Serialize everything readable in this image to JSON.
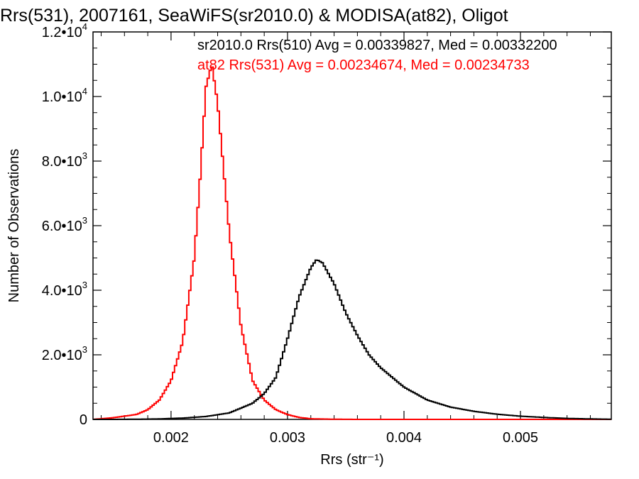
{
  "chart_data": {
    "type": "line",
    "title": "Rrs(531), 2007161, SeaWiFS(sr2010.0) & MODISA(at82), Oligot",
    "xlabel": "Rrs (str⁻¹)",
    "ylabel": "Number of Observations",
    "xlim": [
      0.00133,
      0.00578
    ],
    "ylim": [
      0,
      12000
    ],
    "x_ticks": [
      {
        "value": 0.002,
        "label": "0.002"
      },
      {
        "value": 0.003,
        "label": "0.003"
      },
      {
        "value": 0.004,
        "label": "0.004"
      },
      {
        "value": 0.005,
        "label": "0.005"
      }
    ],
    "y_ticks": [
      {
        "value": 0,
        "base": "0",
        "exp": ""
      },
      {
        "value": 2000,
        "base": "2.0•10",
        "exp": "3"
      },
      {
        "value": 4000,
        "base": "4.0•10",
        "exp": "3"
      },
      {
        "value": 6000,
        "base": "6.0•10",
        "exp": "3"
      },
      {
        "value": 8000,
        "base": "8.0•10",
        "exp": "3"
      },
      {
        "value": 10000,
        "base": "1.0•10",
        "exp": "4"
      },
      {
        "value": 12000,
        "base": "1.2•10",
        "exp": "4"
      }
    ],
    "grid": false,
    "legend": "top-right",
    "series": [
      {
        "name": "sr2010.0 Rrs(510) Avg = 0.00339827, Med = 0.00332200",
        "color": "#000000",
        "x": [
          0.00133,
          0.0015,
          0.0017,
          0.0019,
          0.0021,
          0.0023,
          0.0025,
          0.0027,
          0.0028,
          0.0029,
          0.003,
          0.0031,
          0.0032,
          0.00325,
          0.0033,
          0.0034,
          0.0035,
          0.0036,
          0.0037,
          0.0038,
          0.0039,
          0.004,
          0.0042,
          0.0044,
          0.0046,
          0.0048,
          0.005,
          0.0052,
          0.0054,
          0.0056,
          0.00578
        ],
        "values": [
          0,
          0,
          5,
          15,
          40,
          90,
          200,
          500,
          800,
          1300,
          2500,
          3800,
          4700,
          4950,
          4850,
          4200,
          3300,
          2600,
          2000,
          1600,
          1300,
          1000,
          600,
          380,
          250,
          160,
          100,
          60,
          30,
          15,
          5
        ]
      },
      {
        "name": "at82 Rrs(531) Avg = 0.00234674, Med = 0.00234733",
        "color": "#ff0000",
        "x": [
          0.00133,
          0.0015,
          0.0016,
          0.0017,
          0.0018,
          0.0019,
          0.002,
          0.0021,
          0.0022,
          0.00225,
          0.0023,
          0.00235,
          0.0024,
          0.00245,
          0.0025,
          0.0026,
          0.0027,
          0.0028,
          0.0029,
          0.003,
          0.0031,
          0.0032,
          0.0034,
          0.0036,
          0.0038,
          0.004,
          0.00578
        ],
        "values": [
          0,
          50,
          100,
          150,
          300,
          600,
          1200,
          2400,
          5000,
          7500,
          10300,
          11000,
          9800,
          7800,
          5800,
          2900,
          1200,
          600,
          300,
          150,
          60,
          20,
          5,
          0,
          0,
          0,
          0
        ]
      }
    ]
  }
}
